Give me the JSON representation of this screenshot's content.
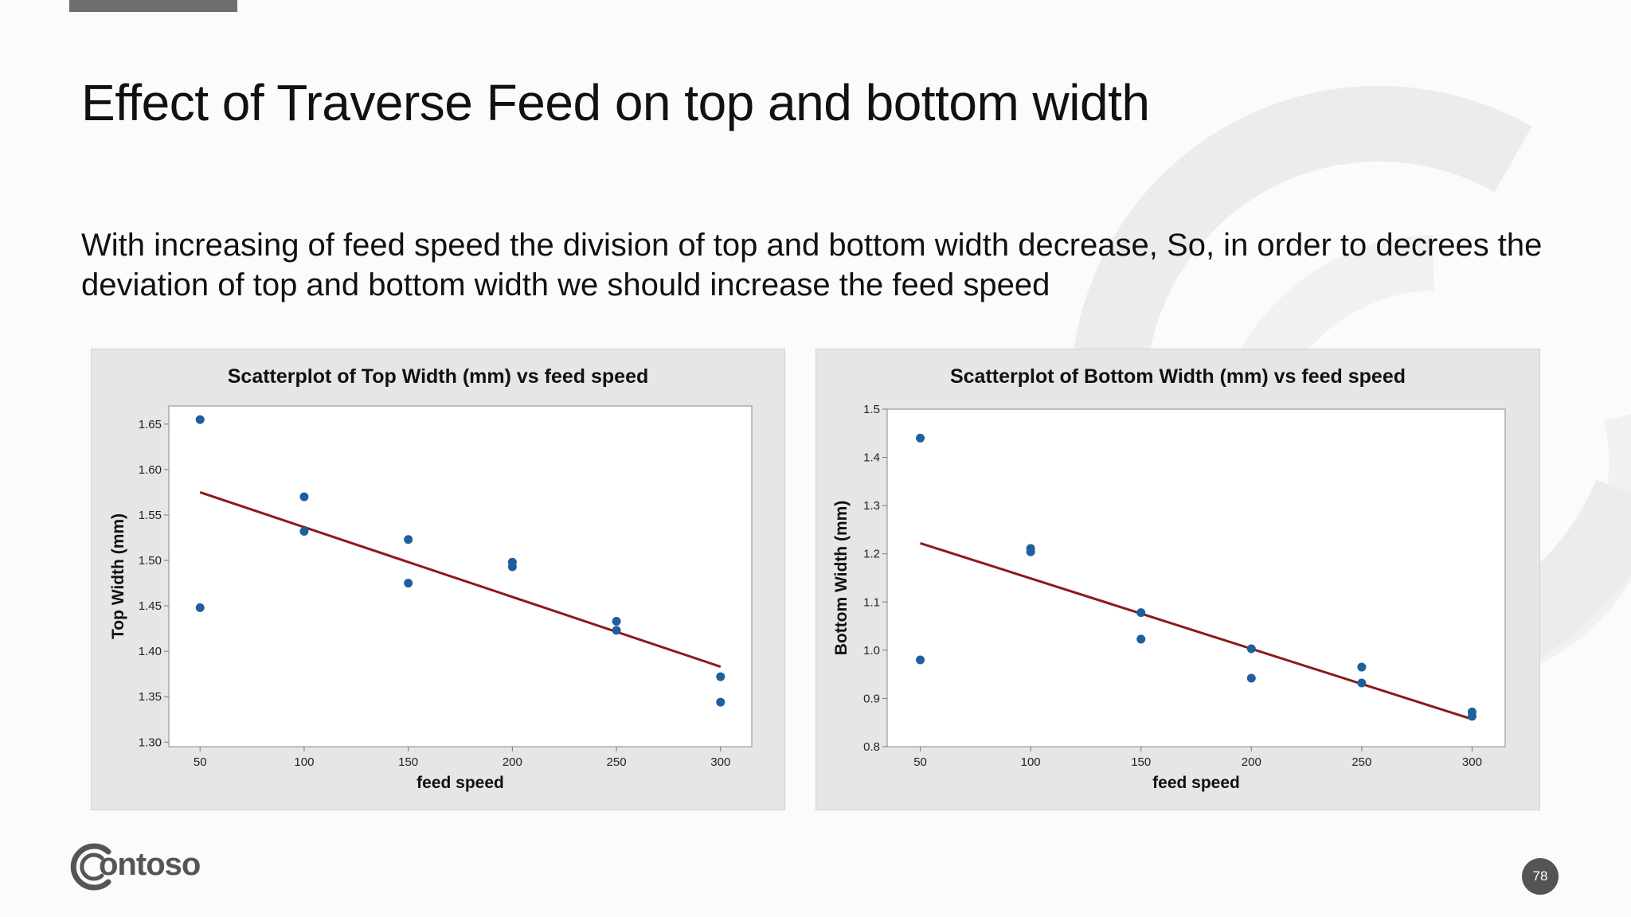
{
  "slide": {
    "title": "Effect of Traverse Feed on top and bottom width",
    "body": "With increasing of feed speed the division of top and bottom width decrease, So, in order to decrees the deviation of top and bottom width we should increase the feed speed",
    "logo_text": "ontoso",
    "logo_icon": "contoso-c-logo-icon",
    "page_number": "78"
  },
  "colors": {
    "point": "#1f5f9e",
    "fit_line": "#8b1a1a",
    "deco_arc": "#ececec"
  },
  "chart_data": [
    {
      "type": "scatter",
      "title": "Scatterplot of Top Width  (mm) vs feed speed",
      "xlabel": "feed speed",
      "ylabel": "Top Width  (mm)",
      "xlim": [
        35,
        315
      ],
      "ylim": [
        1.295,
        1.67
      ],
      "xticks": [
        "50",
        "100",
        "150",
        "200",
        "250",
        "300"
      ],
      "yticks": [
        "1.30",
        "1.35",
        "1.40",
        "1.45",
        "1.50",
        "1.55",
        "1.60",
        "1.65"
      ],
      "x": [
        50,
        50,
        100,
        100,
        150,
        150,
        200,
        200,
        250,
        250,
        300,
        300
      ],
      "y": [
        1.655,
        1.448,
        1.57,
        1.532,
        1.523,
        1.475,
        1.498,
        1.493,
        1.433,
        1.423,
        1.372,
        1.344
      ],
      "fit_line": {
        "x": [
          50,
          300
        ],
        "y": [
          1.575,
          1.383
        ]
      },
      "grid": false,
      "legend": "none"
    },
    {
      "type": "scatter",
      "title": "Scatterplot of Bottom Width  (mm) vs feed speed",
      "xlabel": "feed speed",
      "ylabel": "Bottom Width  (mm)",
      "xlim": [
        35,
        315
      ],
      "ylim": [
        0.8,
        1.5
      ],
      "xticks": [
        "50",
        "100",
        "150",
        "200",
        "250",
        "300"
      ],
      "yticks": [
        "0.8",
        "0.9",
        "1.0",
        "1.1",
        "1.2",
        "1.3",
        "1.4",
        "1.5"
      ],
      "x": [
        50,
        50,
        100,
        100,
        150,
        150,
        200,
        200,
        250,
        250,
        300,
        300
      ],
      "y": [
        1.44,
        0.98,
        1.211,
        1.204,
        1.078,
        1.023,
        1.003,
        0.942,
        0.965,
        0.932,
        0.872,
        0.863
      ],
      "fit_line": {
        "x": [
          50,
          300
        ],
        "y": [
          1.222,
          0.857
        ]
      },
      "grid": false,
      "legend": "none"
    }
  ]
}
